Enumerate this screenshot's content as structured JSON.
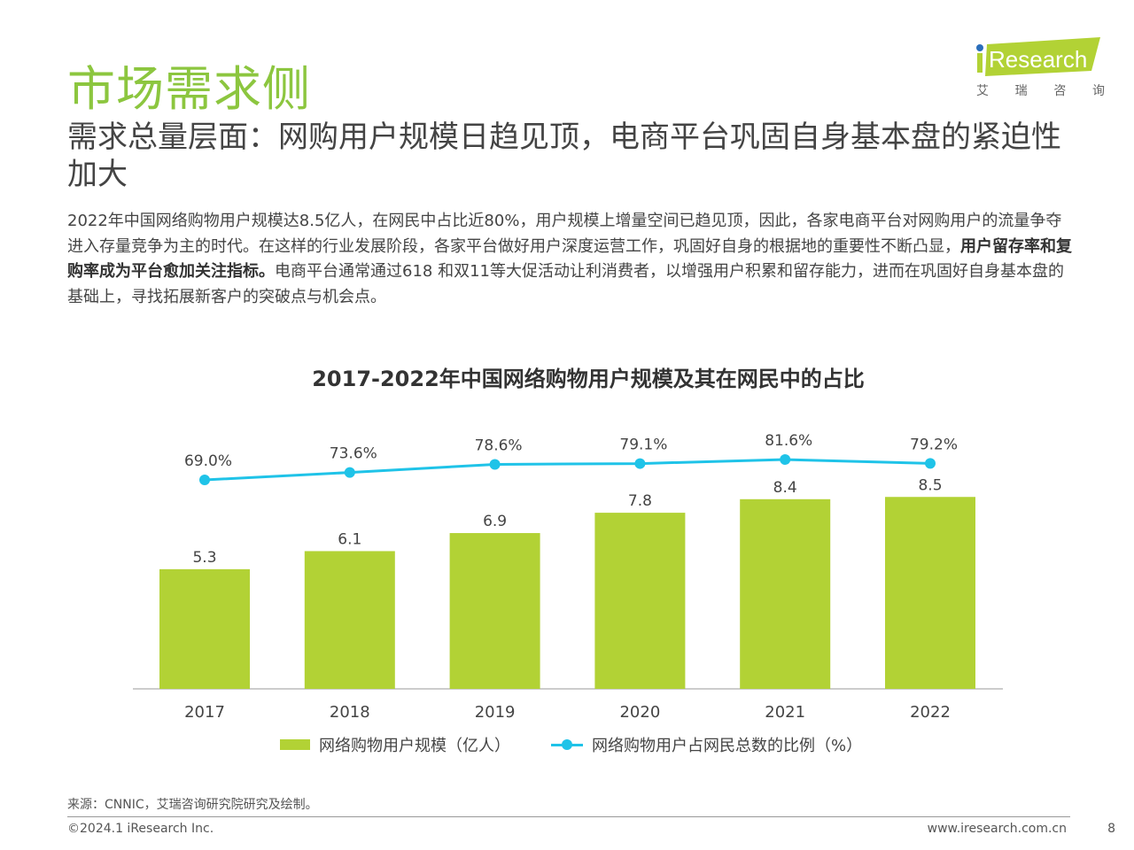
{
  "header": {
    "title": "市场需求侧",
    "subtitle": "需求总量层面：网购用户规模日趋见顶，电商平台巩固自身基本盘的紧迫性加大",
    "logo": {
      "text": "iResearch",
      "cn": [
        "艾",
        "瑞",
        "咨",
        "询"
      ]
    }
  },
  "body": {
    "p1": "2022年中国网络购物用户规模达8.5亿人，在网民中占比近80%，用户规模上增量空间已趋见顶，因此，各家电商平台对网购用户的流量争夺进入存量竞争为主的时代。在这样的行业发展阶段，各家平台做好用户深度运营工作，巩固好自身的根据地的重要性不断凸显，",
    "bold": "用户留存率和复购率成为平台愈加关注指标。",
    "p2": "电商平台通常通过618 和双11等大促活动让利消费者，以增强用户积累和留存能力，进而在巩固好自身基本盘的基础上，寻找拓展新客户的突破点与机会点。"
  },
  "chart_data": {
    "type": "bar+line",
    "title": "2017-2022年中国网络购物用户规模及其在网民中的占比",
    "categories": [
      "2017",
      "2018",
      "2019",
      "2020",
      "2021",
      "2022"
    ],
    "series": [
      {
        "name": "网络购物用户规模（亿人）",
        "type": "bar",
        "color": "#b2d235",
        "values": [
          5.3,
          6.1,
          6.9,
          7.8,
          8.4,
          8.5
        ],
        "labels": [
          "5.3",
          "6.1",
          "6.9",
          "7.8",
          "8.4",
          "8.5"
        ]
      },
      {
        "name": "网络购物用户占网民总数的比例（%）",
        "type": "line",
        "color": "#1fc3e8",
        "values": [
          69.0,
          73.6,
          78.6,
          79.1,
          81.6,
          79.2
        ],
        "labels": [
          "69.0%",
          "73.6%",
          "78.6%",
          "79.1%",
          "81.6%",
          "79.2%"
        ]
      }
    ],
    "legend": "bottom",
    "grid": false
  },
  "footer": {
    "source": "来源：CNNIC，艾瑞咨询研究院研究及绘制。",
    "copyright": "©2024.1 iResearch Inc.",
    "site": "www.iresearch.com.cn",
    "page": "8"
  }
}
